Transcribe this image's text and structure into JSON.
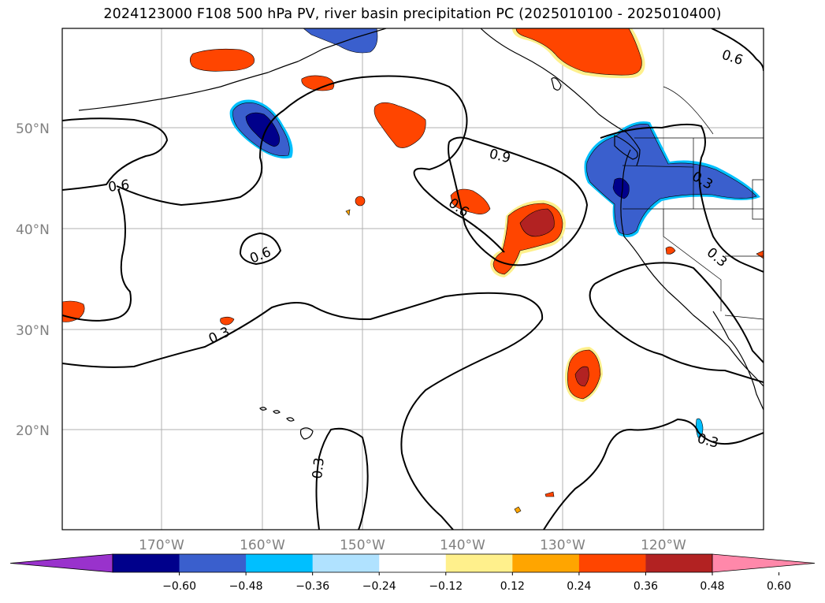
{
  "title": "2024123000 F108 500 hPa PV, river basin precipitation PC (2025010100 - 2025010400)",
  "map": {
    "lat_labels": [
      "50°N",
      "40°N",
      "30°N",
      "20°N"
    ],
    "lon_labels": [
      "170°W",
      "160°W",
      "150°W",
      "140°W",
      "130°W",
      "120°W"
    ],
    "contour_labels": [
      {
        "text": "0.6",
        "name": "contour-label-0.6-top-right"
      },
      {
        "text": "0.9",
        "name": "contour-label-0.9"
      },
      {
        "text": "0.6",
        "name": "contour-label-0.6-west"
      },
      {
        "text": "0.6",
        "name": "contour-label-0.6-central"
      },
      {
        "text": "0.6",
        "name": "contour-label-0.6-mid"
      },
      {
        "text": "0.3",
        "name": "contour-label-0.3-pnw"
      },
      {
        "text": "0.3",
        "name": "contour-label-0.3-california"
      },
      {
        "text": "0.3",
        "name": "contour-label-0.3-west"
      },
      {
        "text": "0.3",
        "name": "contour-label-0.3-mexico"
      },
      {
        "text": "0.3",
        "name": "contour-label-0.3-south"
      }
    ]
  },
  "colorbar": {
    "colors": [
      "#9932cc",
      "#00008b",
      "#3a5fcd",
      "#00bfff",
      "#b0e2ff",
      "#ffffff",
      "#fff08c",
      "#ffa500",
      "#ff4500",
      "#b22222",
      "#ff88aa"
    ],
    "ticks": [
      "−0.60",
      "−0.48",
      "−0.36",
      "−0.24",
      "−0.12",
      "0.12",
      "0.24",
      "0.36",
      "0.48",
      "0.60"
    ]
  }
}
